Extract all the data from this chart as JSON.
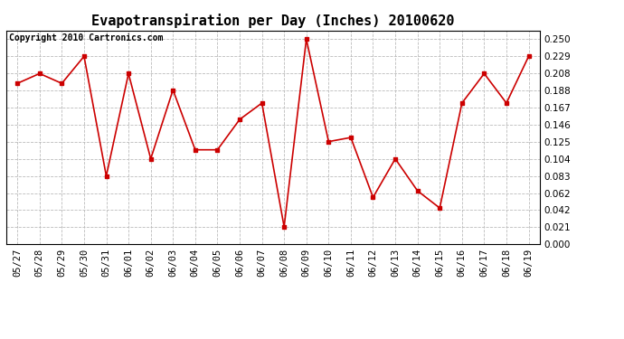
{
  "title": "Evapotranspiration per Day (Inches) 20100620",
  "copyright": "Copyright 2010 Cartronics.com",
  "dates": [
    "05/27",
    "05/28",
    "05/29",
    "05/30",
    "05/31",
    "06/01",
    "06/02",
    "06/03",
    "06/04",
    "06/05",
    "06/06",
    "06/07",
    "06/08",
    "06/09",
    "06/10",
    "06/11",
    "06/12",
    "06/13",
    "06/14",
    "06/15",
    "06/16",
    "06/17",
    "06/18",
    "06/19"
  ],
  "values": [
    0.196,
    0.208,
    0.196,
    0.229,
    0.083,
    0.208,
    0.104,
    0.188,
    0.115,
    0.115,
    0.152,
    0.172,
    0.021,
    0.25,
    0.125,
    0.13,
    0.057,
    0.104,
    0.065,
    0.044,
    0.172,
    0.208,
    0.172,
    0.229
  ],
  "line_color": "#cc0000",
  "marker": "s",
  "marker_size": 3,
  "bg_color": "#ffffff",
  "plot_bg_color": "#ffffff",
  "grid_color": "#bbbbbb",
  "ylim": [
    0.0,
    0.2605
  ],
  "yticks": [
    0.0,
    0.021,
    0.042,
    0.062,
    0.083,
    0.104,
    0.125,
    0.146,
    0.167,
    0.188,
    0.208,
    0.229,
    0.25
  ],
  "title_fontsize": 11,
  "copyright_fontsize": 7,
  "tick_fontsize": 7.5
}
